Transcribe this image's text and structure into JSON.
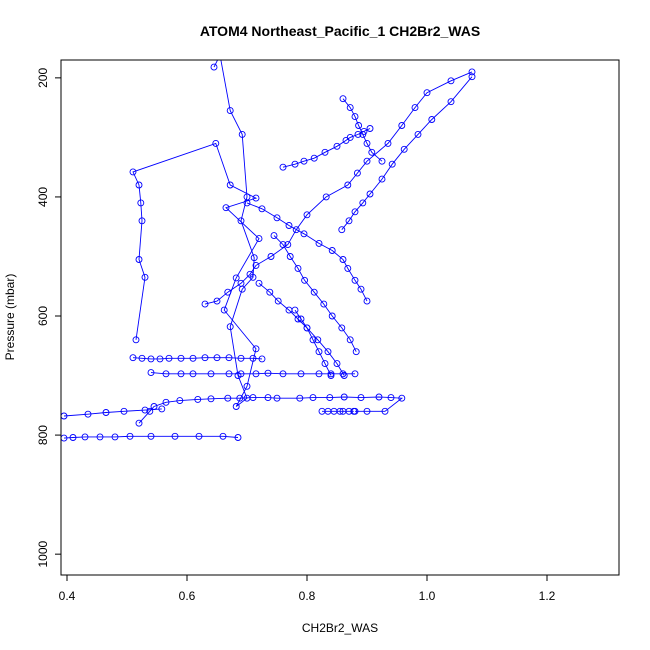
{
  "chart_data": {
    "type": "line",
    "title": "ATOM4 Northeast_Pacific_1 CH2Br2_WAS",
    "xlabel": "CH2Br2_WAS",
    "ylabel": "Pressure (mbar)",
    "xlim": [
      0.39,
      1.32
    ],
    "ylim": [
      1035,
      170
    ],
    "y_axis_reversed": true,
    "x_ticks": [
      "0.4",
      "0.6",
      "0.8",
      "1.0",
      "1.2"
    ],
    "y_ticks": [
      "200",
      "400",
      "600",
      "800",
      "1000"
    ],
    "grid": false,
    "legend": "none",
    "colors": {
      "series": "#0000ff",
      "axis": "#000000",
      "background": "#ffffff"
    },
    "marker": "open-circle",
    "series": [
      {
        "x": [
          0.645,
          0.655,
          0.672,
          0.692,
          0.7,
          0.69,
          0.712,
          0.71,
          0.692,
          0.672,
          0.685,
          0.7,
          0.682,
          0.7,
          0.715,
          0.662,
          0.682,
          0.72,
          0.665,
          0.715,
          0.672,
          0.648,
          0.51,
          0.52,
          0.523,
          0.525,
          0.52,
          0.53,
          0.515
        ],
        "y": [
          182,
          162,
          255,
          295,
          400,
          440,
          502,
          535,
          555,
          618,
          700,
          738,
          752,
          718,
          655,
          590,
          536,
          470,
          418,
          402,
          380,
          310,
          358,
          380,
          410,
          440,
          505,
          535,
          640
        ]
      },
      {
        "x": [
          0.52,
          0.538,
          0.545,
          0.565,
          0.588,
          0.618,
          0.64,
          0.668,
          0.688,
          0.71,
          0.735,
          0.75,
          0.788,
          0.81,
          0.838,
          0.862,
          0.89,
          0.92,
          0.94,
          0.958,
          0.93,
          0.9,
          0.88
        ],
        "y": [
          780,
          760,
          752,
          745,
          742,
          740,
          739,
          738,
          738,
          737,
          737,
          738,
          738,
          737,
          737,
          736,
          737,
          736,
          737,
          738,
          760,
          760,
          760
        ]
      },
      {
        "x": [
          0.54,
          0.565,
          0.59,
          0.61,
          0.64,
          0.67,
          0.69,
          0.715,
          0.735,
          0.76,
          0.79,
          0.82,
          0.84,
          0.86,
          0.88
        ],
        "y": [
          695,
          697,
          697,
          697,
          697,
          697,
          697,
          697,
          696,
          697,
          697,
          697,
          697,
          697,
          697
        ]
      },
      {
        "x": [
          0.51,
          0.525,
          0.54,
          0.555,
          0.57,
          0.59,
          0.61,
          0.63,
          0.65,
          0.67,
          0.69,
          0.71,
          0.725
        ],
        "y": [
          670,
          671,
          672,
          672,
          671,
          671,
          671,
          670,
          670,
          670,
          671,
          671,
          672
        ]
      },
      {
        "x": [
          0.63,
          0.65,
          0.668,
          0.69,
          0.705,
          0.715,
          0.74,
          0.768,
          0.782,
          0.8,
          0.832,
          0.868,
          0.884,
          0.9,
          0.935,
          0.958,
          0.98,
          1.0,
          1.04,
          1.075
        ],
        "y": [
          580,
          575,
          560,
          545,
          530,
          515,
          500,
          480,
          455,
          430,
          400,
          380,
          360,
          340,
          310,
          280,
          250,
          225,
          205,
          190
        ]
      },
      {
        "x": [
          0.858,
          0.87,
          0.88,
          0.893,
          0.905,
          0.925,
          0.942,
          0.962,
          0.985,
          1.008,
          1.04,
          1.075
        ],
        "y": [
          455,
          440,
          425,
          410,
          395,
          370,
          345,
          320,
          295,
          270,
          240,
          198
        ]
      },
      {
        "x": [
          0.7,
          0.725,
          0.75,
          0.77,
          0.795,
          0.82,
          0.842,
          0.86,
          0.868,
          0.88,
          0.89,
          0.9
        ],
        "y": [
          410,
          420,
          435,
          448,
          462,
          478,
          490,
          505,
          520,
          540,
          555,
          575
        ]
      },
      {
        "x": [
          0.76,
          0.78,
          0.795,
          0.812,
          0.83,
          0.85,
          0.865,
          0.872,
          0.885,
          0.895,
          0.905
        ],
        "y": [
          350,
          345,
          340,
          335,
          325,
          315,
          305,
          300,
          295,
          290,
          285
        ]
      },
      {
        "x": [
          0.72,
          0.738,
          0.752,
          0.77,
          0.785,
          0.8,
          0.818,
          0.835,
          0.85,
          0.862
        ],
        "y": [
          545,
          560,
          575,
          590,
          605,
          620,
          640,
          660,
          680,
          700
        ]
      },
      {
        "x": [
          0.745,
          0.76,
          0.772,
          0.785,
          0.796,
          0.812,
          0.828,
          0.842,
          0.858,
          0.872,
          0.882
        ],
        "y": [
          465,
          480,
          500,
          520,
          540,
          560,
          580,
          600,
          620,
          640,
          660
        ]
      },
      {
        "x": [
          0.78,
          0.79,
          0.8,
          0.81,
          0.82,
          0.83,
          0.84
        ],
        "y": [
          590,
          605,
          620,
          640,
          660,
          680,
          700
        ]
      },
      {
        "x": [
          0.825,
          0.835,
          0.845,
          0.855,
          0.86,
          0.87,
          0.878
        ],
        "y": [
          760,
          760,
          760,
          760,
          760,
          760,
          760
        ]
      },
      {
        "x": [
          0.395,
          0.41,
          0.43,
          0.455,
          0.48,
          0.505,
          0.54,
          0.58,
          0.62,
          0.66,
          0.685
        ],
        "y": [
          805,
          804,
          803,
          803,
          803,
          802,
          802,
          802,
          802,
          802,
          804
        ]
      },
      {
        "x": [
          0.395,
          0.435,
          0.465,
          0.495,
          0.53,
          0.558
        ],
        "y": [
          768,
          765,
          762,
          760,
          758,
          756
        ]
      },
      {
        "x": [
          0.86,
          0.872,
          0.88,
          0.886,
          0.893,
          0.9,
          0.908,
          0.925
        ],
        "y": [
          235,
          250,
          265,
          280,
          295,
          310,
          325,
          340
        ]
      }
    ]
  }
}
